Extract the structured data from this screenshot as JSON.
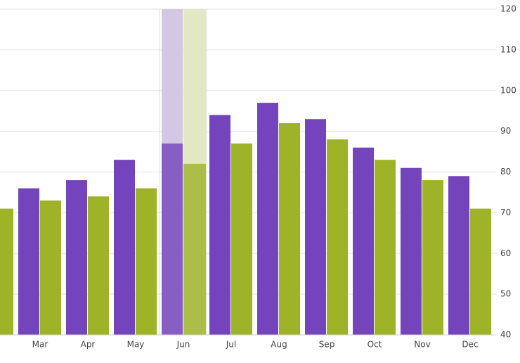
{
  "chart_data": {
    "type": "bar",
    "categories": [
      null,
      "Mar",
      "Apr",
      "May",
      "Jun",
      "Jul",
      "Aug",
      "Sep",
      "Oct",
      "Nov",
      "Dec"
    ],
    "series": [
      {
        "color": "#7444bc",
        "values": [
          null,
          76,
          78,
          83,
          87,
          94,
          97,
          93,
          86,
          81,
          79
        ]
      },
      {
        "color": "#9fb328",
        "values": [
          71,
          73,
          74,
          76,
          82,
          87,
          92,
          88,
          83,
          78,
          71
        ]
      }
    ],
    "ylim": [
      40,
      120
    ],
    "yticks": [
      40,
      50,
      60,
      70,
      80,
      90,
      100,
      110,
      120
    ],
    "grid": true
  }
}
